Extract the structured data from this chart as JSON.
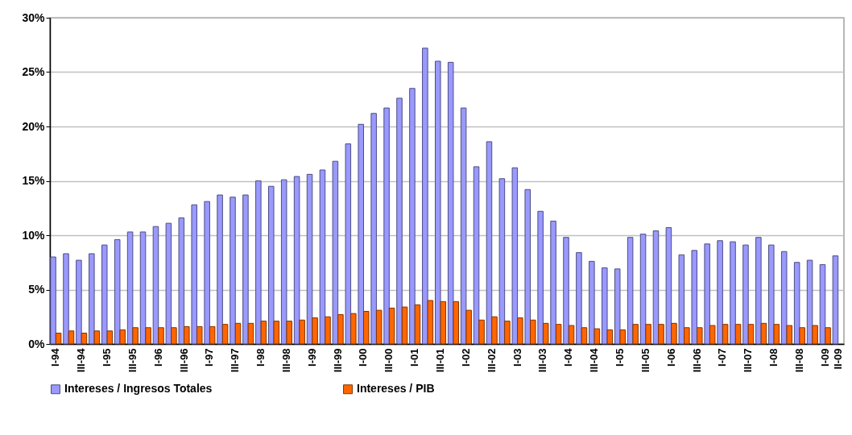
{
  "chart_data": {
    "type": "bar",
    "categories": [
      "I-94",
      null,
      "III-94",
      null,
      "I-95",
      null,
      "III-95",
      null,
      "I-96",
      null,
      "III-96",
      null,
      "I-97",
      null,
      "III-97",
      null,
      "I-98",
      null,
      "III-98",
      null,
      "I-99",
      null,
      "III-99",
      null,
      "I-00",
      null,
      "III-00",
      null,
      "I-01",
      null,
      "III-01",
      null,
      "I-02",
      null,
      "III-02",
      null,
      "I-03",
      null,
      "III-03",
      null,
      "I-04",
      null,
      "III-04",
      null,
      "I-05",
      null,
      "III-05",
      null,
      "I-06",
      null,
      "III-06",
      null,
      "I-07",
      null,
      "III-07",
      null,
      "I-08",
      null,
      "III-08",
      null,
      "I-09",
      "II-09"
    ],
    "series": [
      {
        "name": "Intereses / Ingresos Totales",
        "color": "#9999ff",
        "values": [
          8.0,
          8.3,
          7.7,
          8.3,
          9.1,
          9.6,
          10.3,
          10.3,
          10.8,
          11.1,
          11.6,
          12.8,
          13.1,
          13.7,
          13.5,
          13.7,
          15.0,
          14.5,
          15.1,
          15.4,
          15.6,
          16.0,
          16.8,
          18.4,
          20.2,
          21.2,
          21.7,
          22.6,
          23.5,
          27.2,
          26.0,
          25.9,
          21.7,
          16.3,
          18.6,
          15.2,
          16.2,
          14.2,
          12.2,
          11.3,
          9.8,
          8.4,
          7.6,
          7.0,
          6.9,
          9.8,
          10.1,
          10.4,
          10.7,
          8.2,
          8.6,
          9.2,
          9.5,
          9.4,
          9.1,
          9.8,
          9.1,
          8.5,
          7.5,
          7.7,
          7.3,
          8.1
        ]
      },
      {
        "name": "Intereses / PIB",
        "color": "#ff6600",
        "values": [
          1.0,
          1.2,
          1.0,
          1.2,
          1.2,
          1.3,
          1.5,
          1.5,
          1.5,
          1.5,
          1.6,
          1.6,
          1.6,
          1.8,
          1.9,
          1.9,
          2.1,
          2.1,
          2.1,
          2.2,
          2.4,
          2.5,
          2.7,
          2.8,
          3.0,
          3.1,
          3.3,
          3.4,
          3.6,
          4.0,
          3.9,
          3.9,
          3.1,
          2.2,
          2.5,
          2.1,
          2.4,
          2.2,
          1.9,
          1.8,
          1.7,
          1.5,
          1.4,
          1.3,
          1.3,
          1.8,
          1.8,
          1.8,
          1.9,
          1.5,
          1.5,
          1.7,
          1.8,
          1.8,
          1.8,
          1.9,
          1.8,
          1.7,
          1.5,
          1.7,
          1.5,
          null
        ]
      }
    ],
    "ylim": [
      0,
      30
    ],
    "yticks": [
      {
        "value": 0,
        "label": "0%"
      },
      {
        "value": 5,
        "label": "5%"
      },
      {
        "value": 10,
        "label": "10%"
      },
      {
        "value": 15,
        "label": "15%"
      },
      {
        "value": 20,
        "label": "20%"
      },
      {
        "value": 25,
        "label": "25%"
      },
      {
        "value": 30,
        "label": "30%"
      }
    ],
    "grid": "y",
    "legend": "bottom"
  }
}
